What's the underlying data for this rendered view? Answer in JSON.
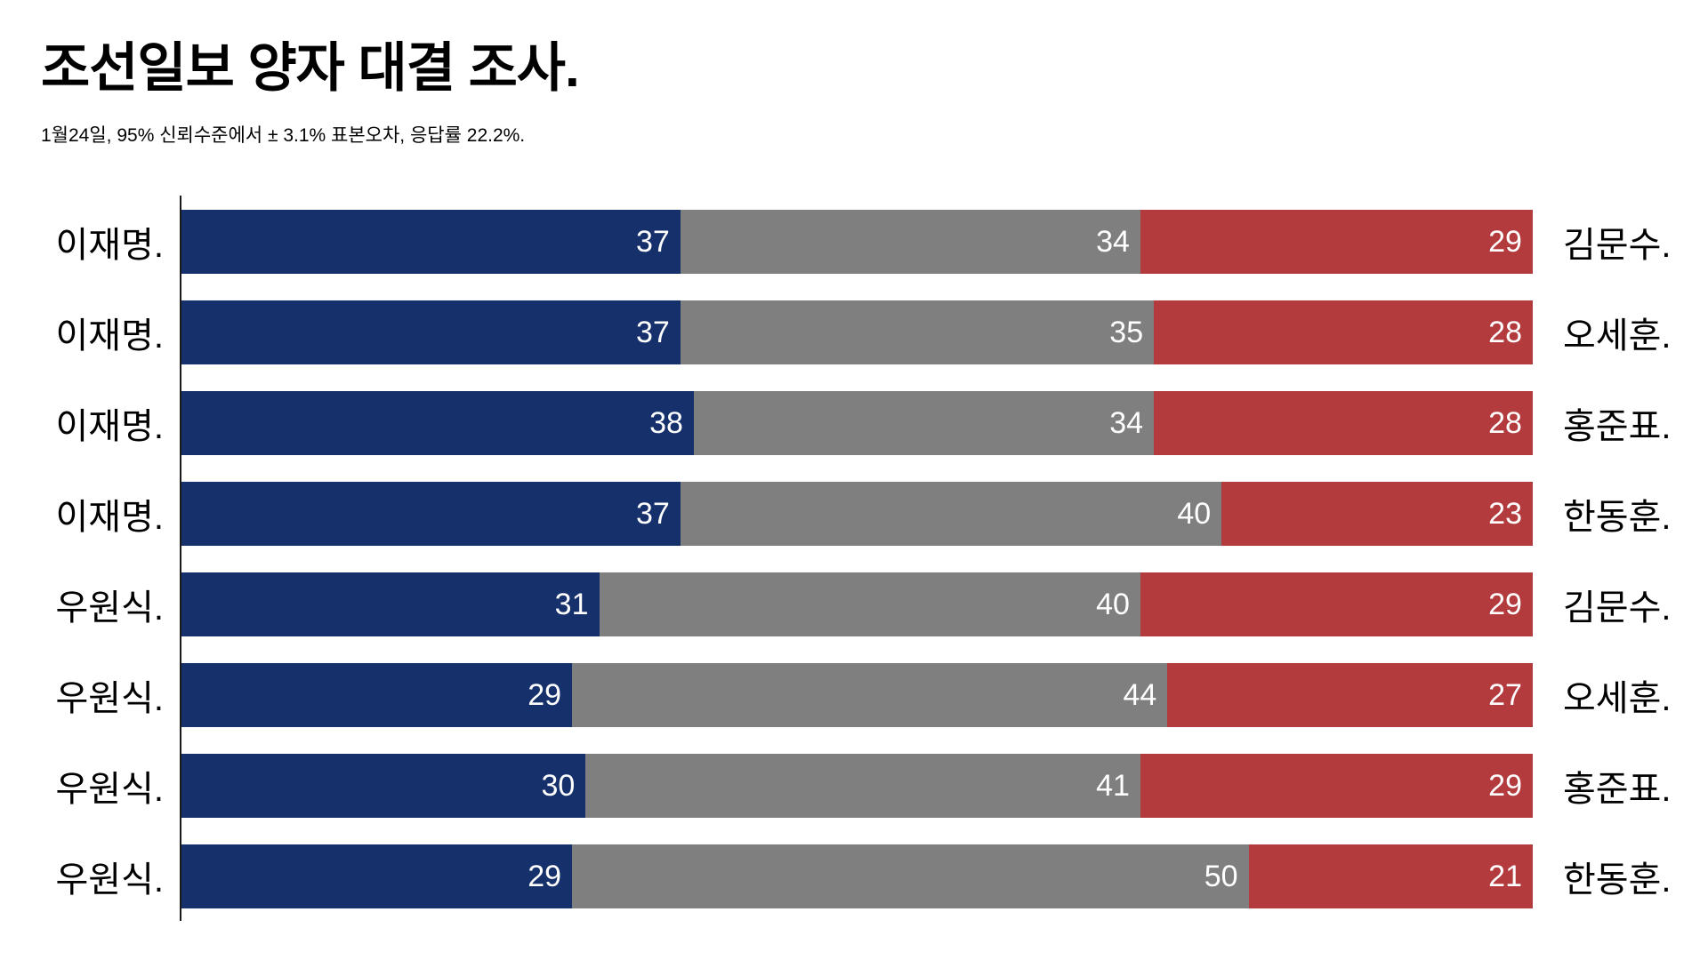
{
  "header": {
    "title": "조선일보 양자 대결 조사.",
    "subtitle": "1월24일, 95% 신뢰수준에서 ± 3.1% 표본오차, 응답률 22.2%."
  },
  "chart_data": {
    "type": "bar",
    "orientation": "horizontal",
    "stacked": true,
    "unit": "percent",
    "xlim": [
      0,
      100
    ],
    "grid": false,
    "legend": "none",
    "colors": {
      "blue": "#16306B",
      "gray": "#7F7F7F",
      "red": "#B43B3D"
    },
    "rows": [
      {
        "left_label": "이재명.",
        "values": [
          37,
          34,
          29
        ],
        "right_label": "김문수."
      },
      {
        "left_label": "이재명.",
        "values": [
          37,
          35,
          28
        ],
        "right_label": "오세훈."
      },
      {
        "left_label": "이재명.",
        "values": [
          38,
          34,
          28
        ],
        "right_label": "홍준표."
      },
      {
        "left_label": "이재명.",
        "values": [
          37,
          40,
          23
        ],
        "right_label": "한동훈."
      },
      {
        "left_label": "우원식.",
        "values": [
          31,
          40,
          29
        ],
        "right_label": "김문수."
      },
      {
        "left_label": "우원식.",
        "values": [
          29,
          44,
          27
        ],
        "right_label": "오세훈."
      },
      {
        "left_label": "우원식.",
        "values": [
          30,
          41,
          29
        ],
        "right_label": "홍준표."
      },
      {
        "left_label": "우원식.",
        "values": [
          29,
          50,
          21
        ],
        "right_label": "한동훈."
      }
    ]
  }
}
